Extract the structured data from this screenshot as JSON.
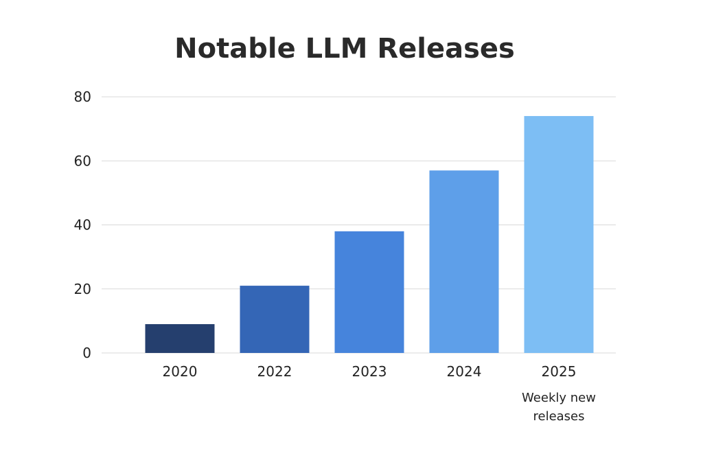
{
  "chart_data": {
    "type": "bar",
    "title": "Notable LLM Releases",
    "xlabel": "",
    "ylabel": "",
    "categories": [
      "2020",
      "2022",
      "2023",
      "2024",
      "2025"
    ],
    "values": [
      9,
      21,
      38,
      57,
      74
    ],
    "ylim": [
      0,
      80
    ],
    "yticks": [
      0,
      20,
      40,
      60,
      80
    ],
    "grid": true,
    "legend": "none",
    "bar_colors": [
      "#253f6e",
      "#3466b6",
      "#4684dc",
      "#5e9fe9",
      "#7dbef4"
    ],
    "annotations": [
      {
        "category": "2025",
        "lines": [
          "Weekly new",
          "releases"
        ]
      }
    ]
  }
}
